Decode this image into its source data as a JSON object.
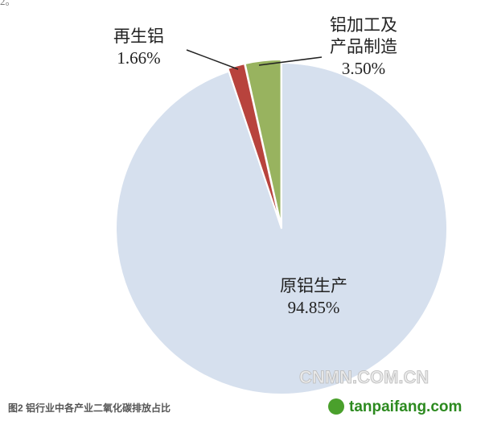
{
  "top_fragment": "2。",
  "chart_data": {
    "type": "pie",
    "categories": [
      "原铝生产",
      "再生铝",
      "铝加工及产品制造"
    ],
    "values": [
      94.85,
      1.66,
      3.5
    ],
    "value_labels": [
      "94.85%",
      "1.66%",
      "3.50%"
    ],
    "colors": [
      "#d6e0ee",
      "#b8433d",
      "#98b35f"
    ],
    "caption": "图2 铝行业中各产业二氧化碳排放占比"
  },
  "watermarks": [
    "CNMN.COM.CN",
    "tanpaifang.com"
  ]
}
